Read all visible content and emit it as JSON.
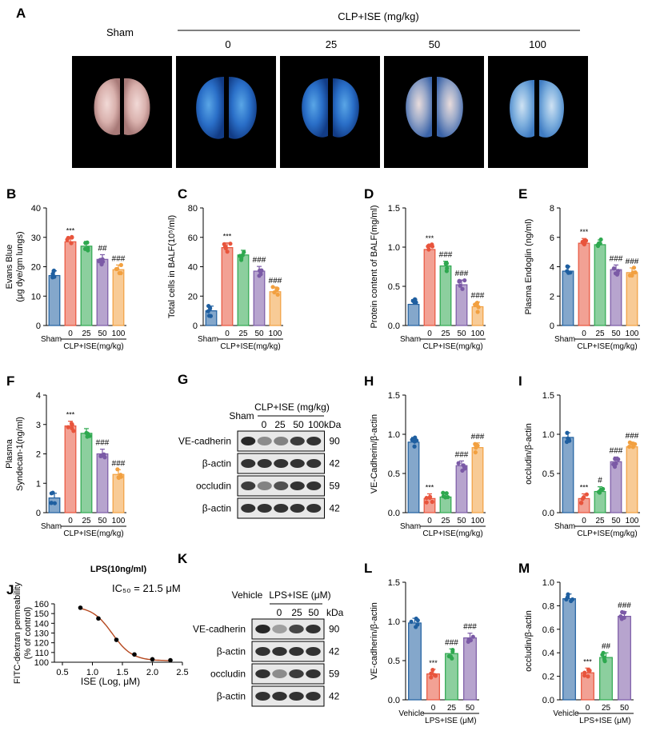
{
  "colors": {
    "sham": "#1f5fa0",
    "dose0": "#e8543c",
    "dose25": "#2ea84f",
    "dose50": "#7b5aa6",
    "dose100": "#f2a040",
    "fit": "#b5481f"
  },
  "panelA": {
    "letter": "A",
    "sham_label": "Sham",
    "group_label": "CLP+ISE (mg/kg)",
    "doses": [
      "0",
      "25",
      "50",
      "100"
    ]
  },
  "chart_data": [
    {
      "id": "B",
      "type": "bar",
      "letter": "B",
      "ylabel": [
        "Evans Blue",
        "(μg dye/gm lungs)"
      ],
      "ylim": [
        0,
        40
      ],
      "yticks": [
        "0",
        "10",
        "20",
        "30",
        "40"
      ],
      "categories": [
        "Sham",
        "0",
        "25",
        "50",
        "100"
      ],
      "values": [
        17,
        28.5,
        27,
        22.5,
        19
      ],
      "marks": [
        "",
        "***",
        "",
        "##",
        "###"
      ],
      "group_label": "CLP+ISE(mg/kg)"
    },
    {
      "id": "C",
      "type": "bar",
      "letter": "C",
      "ylabel": [
        "Total cells in BALF(10⁵/ml)"
      ],
      "ylim": [
        0,
        80
      ],
      "yticks": [
        "0",
        "20",
        "40",
        "60",
        "80"
      ],
      "categories": [
        "Sham",
        "0",
        "25",
        "50",
        "100"
      ],
      "values": [
        10,
        53,
        48,
        37,
        23
      ],
      "marks": [
        "",
        "***",
        "",
        "###",
        "###"
      ],
      "group_label": "CLP+ISE(mg/kg)"
    },
    {
      "id": "D",
      "type": "bar",
      "letter": "D",
      "ylabel": [
        "Protein content of BALF(mg/ml)"
      ],
      "ylim": [
        0,
        1.5
      ],
      "yticks": [
        "0.0",
        "0.5",
        "1.0",
        "1.5"
      ],
      "categories": [
        "Sham",
        "0",
        "25",
        "50",
        "100"
      ],
      "values": [
        0.27,
        0.97,
        0.76,
        0.52,
        0.24
      ],
      "marks": [
        "",
        "***",
        "###",
        "###",
        "###"
      ],
      "group_label": "CLP+ISE(mg/kg)"
    },
    {
      "id": "E",
      "type": "bar",
      "letter": "E",
      "ylabel": [
        "Plasma Endoglin (ng/ml)"
      ],
      "ylim": [
        0,
        8
      ],
      "yticks": [
        "0",
        "2",
        "4",
        "6",
        "8"
      ],
      "categories": [
        "Sham",
        "0",
        "25",
        "50",
        "100"
      ],
      "values": [
        3.7,
        5.6,
        5.5,
        3.8,
        3.6
      ],
      "marks": [
        "",
        "***",
        "",
        "###",
        "###"
      ],
      "group_label": "CLP+ISE(mg/kg)"
    },
    {
      "id": "F",
      "type": "bar",
      "letter": "F",
      "ylabel": [
        "Plasma",
        "Syndecan-1(ng/ml)"
      ],
      "ylim": [
        0,
        4
      ],
      "yticks": [
        "0",
        "1",
        "2",
        "3",
        "4"
      ],
      "categories": [
        "Sham",
        "0",
        "25",
        "50",
        "100"
      ],
      "values": [
        0.5,
        2.95,
        2.7,
        2.0,
        1.3
      ],
      "marks": [
        "",
        "***",
        "",
        "###",
        "###"
      ],
      "group_label": "CLP+ISE(mg/kg)"
    },
    {
      "id": "H",
      "type": "bar",
      "letter": "H",
      "ylabel": [
        "VE-Cadherin/β-actin"
      ],
      "ylim": [
        0,
        1.5
      ],
      "yticks": [
        "0.0",
        "0.5",
        "1.0",
        "1.5"
      ],
      "categories": [
        "Sham",
        "0",
        "25",
        "50",
        "100"
      ],
      "values": [
        0.9,
        0.18,
        0.2,
        0.6,
        0.83
      ],
      "marks": [
        "",
        "***",
        "",
        "###",
        "###"
      ],
      "group_label": "CLP+ISE(mg/kg)"
    },
    {
      "id": "I",
      "type": "bar",
      "letter": "I",
      "ylabel": [
        "occludin/β-actin"
      ],
      "ylim": [
        0,
        1.5
      ],
      "yticks": [
        "0.0",
        "0.5",
        "1.0",
        "1.5"
      ],
      "categories": [
        "Sham",
        "0",
        "25",
        "50",
        "100"
      ],
      "values": [
        0.96,
        0.18,
        0.27,
        0.65,
        0.84
      ],
      "marks": [
        "",
        "***",
        "#",
        "###",
        "###"
      ],
      "group_label": "CLP+ISE(mg/kg)"
    },
    {
      "id": "J",
      "type": "line",
      "letter": "J",
      "title": "LPS(10ng/ml)",
      "annotation": "IC₅₀ = 21.5 μM",
      "xlabel": "ISE (Log, μM)",
      "ylabel": [
        "FITC-dextran permeability",
        "(% of control)"
      ],
      "xlim": [
        0.5,
        2.5
      ],
      "ylim": [
        100,
        160
      ],
      "xticks": [
        "0.5",
        "1.0",
        "1.5",
        "2.0",
        "2.5"
      ],
      "yticks": [
        "100",
        "110",
        "120",
        "130",
        "140",
        "150",
        "160"
      ],
      "x": [
        0.8,
        1.1,
        1.4,
        1.7,
        2.0,
        2.3
      ],
      "y": [
        156,
        145,
        123,
        108,
        103,
        102
      ]
    },
    {
      "id": "L",
      "type": "bar",
      "letter": "L",
      "ylabel": [
        "VE-cadherin/β-actin"
      ],
      "ylim": [
        0,
        1.5
      ],
      "yticks": [
        "0.0",
        "0.5",
        "1.0",
        "1.5"
      ],
      "categories": [
        "Vehicle",
        "0",
        "25",
        "50"
      ],
      "values": [
        0.98,
        0.33,
        0.59,
        0.79
      ],
      "marks": [
        "",
        "***",
        "###",
        "###"
      ],
      "group_label": "LPS+ISE (μM)"
    },
    {
      "id": "M",
      "type": "bar",
      "letter": "M",
      "ylabel": [
        "occludin/β-actin"
      ],
      "ylim": [
        0,
        1.0
      ],
      "yticks": [
        "0.0",
        "0.2",
        "0.4",
        "0.6",
        "0.8",
        "1.0"
      ],
      "categories": [
        "Vehicle",
        "0",
        "25",
        "50"
      ],
      "values": [
        0.86,
        0.23,
        0.36,
        0.71
      ],
      "marks": [
        "",
        "***",
        "##",
        "###"
      ],
      "group_label": "LPS+ISE (μM)"
    }
  ],
  "blotG": {
    "letter": "G",
    "sham_label": "Sham",
    "group_label": "CLP+ISE (mg/kg)",
    "doses": [
      "0",
      "25",
      "50",
      "100"
    ],
    "unit": "kDa",
    "rows": [
      {
        "name": "VE-cadherin",
        "kda": "90",
        "bands": [
          0.95,
          0.45,
          0.5,
          0.85,
          0.9
        ]
      },
      {
        "name": "β-actin",
        "kda": "42",
        "bands": [
          0.9,
          0.9,
          0.9,
          0.9,
          0.9
        ]
      },
      {
        "name": "occludin",
        "kda": "59",
        "bands": [
          0.85,
          0.5,
          0.75,
          0.9,
          0.9
        ]
      },
      {
        "name": "β-actin",
        "kda": "42",
        "bands": [
          0.9,
          0.9,
          0.9,
          0.9,
          0.9
        ]
      }
    ]
  },
  "blotK": {
    "letter": "K",
    "vehicle_label": "Vehicle",
    "group_label": "LPS+ISE (μM)",
    "doses": [
      "0",
      "25",
      "50"
    ],
    "unit": "kDa",
    "rows": [
      {
        "name": "VE-cadherin",
        "kda": "90",
        "bands": [
          0.95,
          0.35,
          0.8,
          0.9
        ]
      },
      {
        "name": "β-actin",
        "kda": "42",
        "bands": [
          0.9,
          0.9,
          0.9,
          0.9
        ]
      },
      {
        "name": "occludin",
        "kda": "59",
        "bands": [
          0.9,
          0.45,
          0.85,
          0.9
        ]
      },
      {
        "name": "β-actin",
        "kda": "42",
        "bands": [
          0.9,
          0.9,
          0.9,
          0.9
        ]
      }
    ]
  }
}
